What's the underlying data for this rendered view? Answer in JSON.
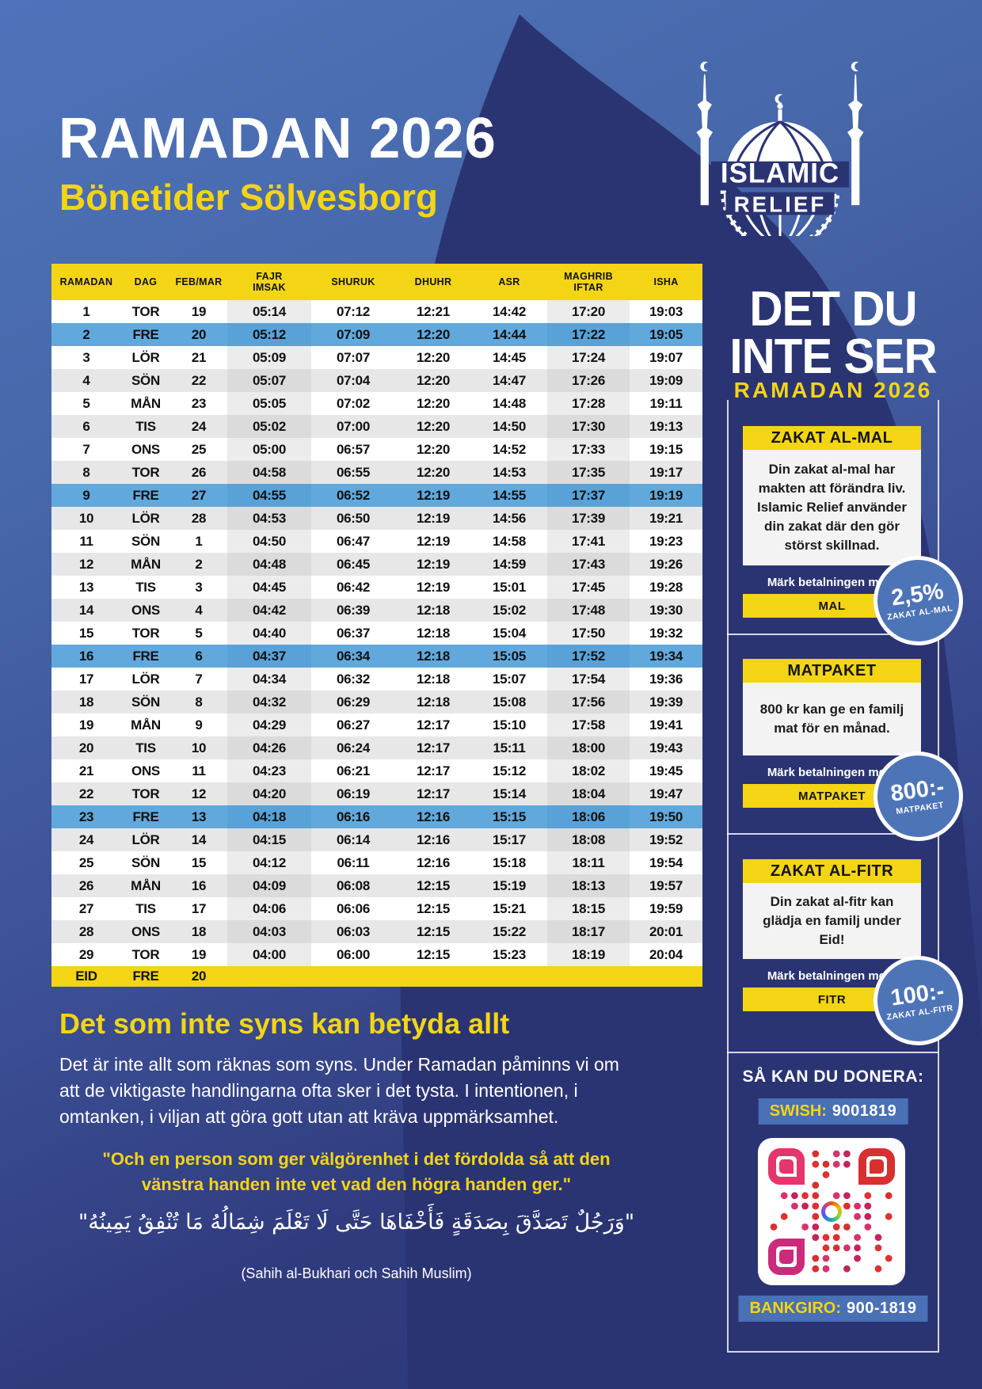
{
  "header": {
    "title": "RAMADAN 2026",
    "subtitle": "Bönetider Sölvesborg"
  },
  "logo": {
    "line1": "ISLAMIC",
    "line2": "RELIEF"
  },
  "table": {
    "headers": [
      [
        "RAMADAN"
      ],
      [
        "DAG"
      ],
      [
        "FEB/MAR"
      ],
      [
        "FAJR",
        "IMSAK"
      ],
      [
        "SHURUK"
      ],
      [
        "DHUHR"
      ],
      [
        "ASR"
      ],
      [
        "MAGHRIB",
        "IFTAR"
      ],
      [
        "ISHA"
      ]
    ],
    "shaded_columns": [
      3,
      7
    ],
    "friday_rows": [
      2,
      9,
      16,
      23
    ],
    "rows": [
      [
        "1",
        "TOR",
        "19",
        "05:14",
        "07:12",
        "12:21",
        "14:42",
        "17:20",
        "19:03"
      ],
      [
        "2",
        "FRE",
        "20",
        "05:12",
        "07:09",
        "12:20",
        "14:44",
        "17:22",
        "19:05"
      ],
      [
        "3",
        "LÖR",
        "21",
        "05:09",
        "07:07",
        "12:20",
        "14:45",
        "17:24",
        "19:07"
      ],
      [
        "4",
        "SÖN",
        "22",
        "05:07",
        "07:04",
        "12:20",
        "14:47",
        "17:26",
        "19:09"
      ],
      [
        "5",
        "MÅN",
        "23",
        "05:05",
        "07:02",
        "12:20",
        "14:48",
        "17:28",
        "19:11"
      ],
      [
        "6",
        "TIS",
        "24",
        "05:02",
        "07:00",
        "12:20",
        "14:50",
        "17:30",
        "19:13"
      ],
      [
        "7",
        "ONS",
        "25",
        "05:00",
        "06:57",
        "12:20",
        "14:52",
        "17:33",
        "19:15"
      ],
      [
        "8",
        "TOR",
        "26",
        "04:58",
        "06:55",
        "12:20",
        "14:53",
        "17:35",
        "19:17"
      ],
      [
        "9",
        "FRE",
        "27",
        "04:55",
        "06:52",
        "12:19",
        "14:55",
        "17:37",
        "19:19"
      ],
      [
        "10",
        "LÖR",
        "28",
        "04:53",
        "06:50",
        "12:19",
        "14:56",
        "17:39",
        "19:21"
      ],
      [
        "11",
        "SÖN",
        "1",
        "04:50",
        "06:47",
        "12:19",
        "14:58",
        "17:41",
        "19:23"
      ],
      [
        "12",
        "MÅN",
        "2",
        "04:48",
        "06:45",
        "12:19",
        "14:59",
        "17:43",
        "19:26"
      ],
      [
        "13",
        "TIS",
        "3",
        "04:45",
        "06:42",
        "12:19",
        "15:01",
        "17:45",
        "19:28"
      ],
      [
        "14",
        "ONS",
        "4",
        "04:42",
        "06:39",
        "12:18",
        "15:02",
        "17:48",
        "19:30"
      ],
      [
        "15",
        "TOR",
        "5",
        "04:40",
        "06:37",
        "12:18",
        "15:04",
        "17:50",
        "19:32"
      ],
      [
        "16",
        "FRE",
        "6",
        "04:37",
        "06:34",
        "12:18",
        "15:05",
        "17:52",
        "19:34"
      ],
      [
        "17",
        "LÖR",
        "7",
        "04:34",
        "06:32",
        "12:18",
        "15:07",
        "17:54",
        "19:36"
      ],
      [
        "18",
        "SÖN",
        "8",
        "04:32",
        "06:29",
        "12:18",
        "15:08",
        "17:56",
        "19:39"
      ],
      [
        "19",
        "MÅN",
        "9",
        "04:29",
        "06:27",
        "12:17",
        "15:10",
        "17:58",
        "19:41"
      ],
      [
        "20",
        "TIS",
        "10",
        "04:26",
        "06:24",
        "12:17",
        "15:11",
        "18:00",
        "19:43"
      ],
      [
        "21",
        "ONS",
        "11",
        "04:23",
        "06:21",
        "12:17",
        "15:12",
        "18:02",
        "19:45"
      ],
      [
        "22",
        "TOR",
        "12",
        "04:20",
        "06:19",
        "12:17",
        "15:14",
        "18:04",
        "19:47"
      ],
      [
        "23",
        "FRE",
        "13",
        "04:18",
        "06:16",
        "12:16",
        "15:15",
        "18:06",
        "19:50"
      ],
      [
        "24",
        "LÖR",
        "14",
        "04:15",
        "06:14",
        "12:16",
        "15:17",
        "18:08",
        "19:52"
      ],
      [
        "25",
        "SÖN",
        "15",
        "04:12",
        "06:11",
        "12:16",
        "15:18",
        "18:11",
        "19:54"
      ],
      [
        "26",
        "MÅN",
        "16",
        "04:09",
        "06:08",
        "12:15",
        "15:19",
        "18:13",
        "19:57"
      ],
      [
        "27",
        "TIS",
        "17",
        "04:06",
        "06:06",
        "12:15",
        "15:21",
        "18:15",
        "19:59"
      ],
      [
        "28",
        "ONS",
        "18",
        "04:03",
        "06:03",
        "12:15",
        "15:22",
        "18:17",
        "20:01"
      ],
      [
        "29",
        "TOR",
        "19",
        "04:00",
        "06:00",
        "12:15",
        "15:23",
        "18:19",
        "20:04"
      ]
    ],
    "eid_row": [
      "EID",
      "FRE",
      "20",
      "",
      "",
      "",
      "",
      "",
      ""
    ]
  },
  "sidebar": {
    "campaign": {
      "line1": "DET DU",
      "line2": "INTE SER",
      "subtitle": "RAMADAN 2026"
    },
    "sections": [
      {
        "title": "ZAKAT AL-MAL",
        "body": "Din zakat al-mal har makten att förändra liv. Islamic Relief använder din zakat där den gör störst skillnad.",
        "label": "Märk betalningen med:",
        "button": "MAL",
        "badge_value": "2,5%",
        "badge_caption": "ZAKAT AL-MAL"
      },
      {
        "title": "MATPAKET",
        "body": "800 kr kan ge en familj mat för en månad.",
        "label": "Märk betalningen med:",
        "button": "MATPAKET",
        "badge_value": "800:-",
        "badge_caption": "MATPAKET"
      },
      {
        "title": "ZAKAT AL-FITR",
        "body": "Din zakat al-fitr kan glädja en familj under Eid!",
        "label": "Märk betalningen med:",
        "button": "FITR",
        "badge_value": "100:-",
        "badge_caption": "ZAKAT AL-FITR"
      }
    ],
    "donate": {
      "title": "SÅ KAN DU DONERA:",
      "swish_label": "SWISH:",
      "swish_number": "9001819",
      "bankgiro_label": "BANKGIRO:",
      "bankgiro_number": "900-1819"
    }
  },
  "footer": {
    "heading": "Det som inte syns kan betyda allt",
    "body": "Det är inte allt som räknas som syns. Under Ramadan påminns vi om att de viktigaste handlingarna ofta sker i det tysta. I intentionen, i omtanken, i viljan att göra gott utan att kräva uppmärksamhet.",
    "quote": "\"Och en person som ger välgörenhet i det fördolda så att den vänstra handen inte vet vad den högra handen ger.\"",
    "arabic": "\"وَرَجُلٌ تَصَدَّقَ بِصَدَقَةٍ فَأَخْفَاهَا حَتَّى لَا تَعْلَمَ شِمَالُهُ مَا تُنْفِقُ يَمِينُهُ\"",
    "source": "(Sahih al-Bukhari och Sahih Muslim)"
  },
  "colors": {
    "yellow": "#f3d516",
    "navy": "#2b3472",
    "pageblue": "#4a6db8",
    "rowblue": "#61a9dd",
    "badgeblue": "#4e74b8",
    "barblue": "#4a70b5",
    "rowgray": "#e7e7e7"
  }
}
